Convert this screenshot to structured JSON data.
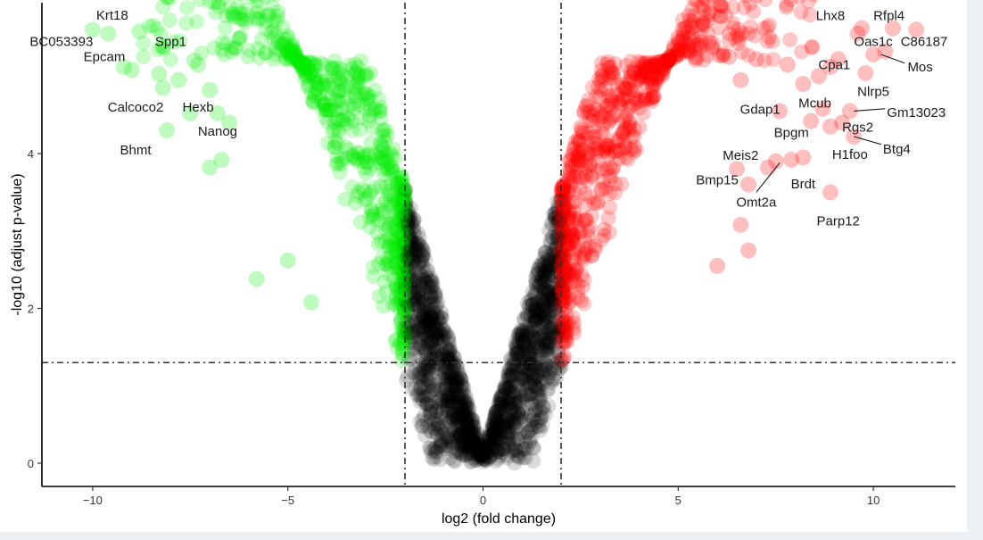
{
  "chart_data": {
    "type": "scatter",
    "title": "",
    "xlabel": "log2 (fold change)",
    "ylabel": "-log10 (adjust p-value)",
    "xlim": [
      -11.3,
      12.1
    ],
    "ylim": [
      -0.3,
      5.95
    ],
    "x_ticks": [
      -10,
      -5,
      0,
      5,
      10
    ],
    "x_tick_labels": [
      "−10",
      "−5",
      "0",
      "5",
      "10"
    ],
    "y_ticks": [
      0,
      2,
      4
    ],
    "y_tick_labels": [
      "0",
      "2",
      "4"
    ],
    "grid": false,
    "legend": "none",
    "thresholds": {
      "log2fc": [
        -2,
        2
      ],
      "neg_log10_padj": 1.3
    },
    "colors": {
      "down": "#00ee00",
      "up": "#ff0000",
      "not_significant": "#000000",
      "threshold_line": "#333333"
    },
    "series": [
      {
        "name": "",
        "color": "#00ee00",
        "points": [
          {
            "x": -10.0,
            "y": 5.6
          },
          {
            "x": -9.6,
            "y": 5.55
          },
          {
            "x": -8.8,
            "y": 5.58
          },
          {
            "x": -9.2,
            "y": 5.12
          },
          {
            "x": -9.0,
            "y": 5.08
          },
          {
            "x": -8.3,
            "y": 5.03
          },
          {
            "x": -7.4,
            "y": 5.2
          },
          {
            "x": -7.3,
            "y": 5.15
          },
          {
            "x": -7.8,
            "y": 4.95
          },
          {
            "x": -8.2,
            "y": 4.85
          },
          {
            "x": -7.0,
            "y": 4.82
          },
          {
            "x": -7.5,
            "y": 4.52
          },
          {
            "x": -6.8,
            "y": 4.52
          },
          {
            "x": -8.1,
            "y": 4.3
          },
          {
            "x": -6.5,
            "y": 4.4
          },
          {
            "x": -7.0,
            "y": 3.82
          },
          {
            "x": -6.7,
            "y": 3.92
          },
          {
            "x": -5.8,
            "y": 2.38
          },
          {
            "x": -4.4,
            "y": 2.08
          },
          {
            "x": -5.0,
            "y": 2.62
          }
        ]
      },
      {
        "name": "",
        "color": "#ff0000",
        "points": [
          {
            "x": 9.7,
            "y": 5.62
          },
          {
            "x": 10.5,
            "y": 5.62
          },
          {
            "x": 11.1,
            "y": 5.6
          },
          {
            "x": 9.6,
            "y": 5.55
          },
          {
            "x": 10.3,
            "y": 5.32
          },
          {
            "x": 10.0,
            "y": 5.28
          },
          {
            "x": 9.1,
            "y": 5.22
          },
          {
            "x": 8.9,
            "y": 5.12
          },
          {
            "x": 9.8,
            "y": 5.04
          },
          {
            "x": 8.6,
            "y": 5.0
          },
          {
            "x": 7.8,
            "y": 5.15
          },
          {
            "x": 8.2,
            "y": 4.9
          },
          {
            "x": 7.6,
            "y": 4.55
          },
          {
            "x": 8.7,
            "y": 4.58
          },
          {
            "x": 8.9,
            "y": 4.35
          },
          {
            "x": 9.4,
            "y": 4.55
          },
          {
            "x": 9.2,
            "y": 4.4
          },
          {
            "x": 9.5,
            "y": 4.22
          },
          {
            "x": 8.4,
            "y": 4.42
          },
          {
            "x": 7.5,
            "y": 3.9
          },
          {
            "x": 7.9,
            "y": 3.92
          },
          {
            "x": 8.2,
            "y": 3.95
          },
          {
            "x": 7.3,
            "y": 3.82
          },
          {
            "x": 6.5,
            "y": 3.8
          },
          {
            "x": 6.8,
            "y": 3.6
          },
          {
            "x": 8.9,
            "y": 3.5
          },
          {
            "x": 6.6,
            "y": 3.08
          },
          {
            "x": 6.8,
            "y": 2.75
          },
          {
            "x": 6.0,
            "y": 2.55
          },
          {
            "x": 7.0,
            "y": 5.22
          },
          {
            "x": 6.3,
            "y": 5.25
          },
          {
            "x": 6.6,
            "y": 4.95
          }
        ]
      }
    ],
    "annotations": [
      {
        "text": "Krt18",
        "x": -9.6,
        "y": 5.58,
        "tx": -9.5,
        "ty": 5.79,
        "anchor": "middle",
        "leader": false
      },
      {
        "text": "BC053393",
        "x": -10.0,
        "y": 5.6,
        "tx": -10.8,
        "ty": 5.45,
        "anchor": "middle",
        "leader": false
      },
      {
        "text": "Spp1",
        "x": -8.8,
        "y": 5.58,
        "tx": -8.0,
        "ty": 5.45,
        "anchor": "middle",
        "leader": false
      },
      {
        "text": "Epcam",
        "x": -9.2,
        "y": 5.12,
        "tx": -9.7,
        "ty": 5.25,
        "anchor": "middle",
        "leader": false
      },
      {
        "text": "Calcoco2",
        "x": -7.8,
        "y": 4.85,
        "tx": -8.9,
        "ty": 4.6,
        "anchor": "middle",
        "leader": false
      },
      {
        "text": "Hexb",
        "x": -7.0,
        "y": 4.72,
        "tx": -7.3,
        "ty": 4.6,
        "anchor": "middle",
        "leader": false
      },
      {
        "text": "Nanog",
        "x": -6.8,
        "y": 4.52,
        "tx": -6.8,
        "ty": 4.29,
        "anchor": "middle",
        "leader": false
      },
      {
        "text": "Bhmt",
        "x": -8.1,
        "y": 4.3,
        "tx": -8.9,
        "ty": 4.05,
        "anchor": "middle",
        "leader": false
      },
      {
        "text": "Lhx8",
        "x": 9.7,
        "y": 5.62,
        "tx": 8.9,
        "ty": 5.78,
        "anchor": "middle",
        "leader": false
      },
      {
        "text": "Rfpl4",
        "x": 10.5,
        "y": 5.62,
        "tx": 10.4,
        "ty": 5.78,
        "anchor": "middle",
        "leader": false
      },
      {
        "text": "Oas1c",
        "x": 10.3,
        "y": 5.32,
        "tx": 10.0,
        "ty": 5.45,
        "anchor": "middle",
        "leader": false
      },
      {
        "text": "C86187",
        "x": 11.1,
        "y": 5.6,
        "tx": 11.3,
        "ty": 5.45,
        "anchor": "middle",
        "leader": false
      },
      {
        "text": "Cpa1",
        "x": 9.1,
        "y": 5.22,
        "tx": 9.0,
        "ty": 5.15,
        "anchor": "middle",
        "leader": false
      },
      {
        "text": "Mos",
        "x": 10.2,
        "y": 5.28,
        "tx": 11.2,
        "ty": 5.12,
        "anchor": "middle",
        "leader": true,
        "lx1": 10.2,
        "ly1": 5.28,
        "lx2": 10.8,
        "ly2": 5.17
      },
      {
        "text": "Nlrp5",
        "x": 9.8,
        "y": 5.04,
        "tx": 10.0,
        "ty": 4.8,
        "anchor": "middle",
        "leader": false
      },
      {
        "text": "Gdap1",
        "x": 7.6,
        "y": 4.55,
        "tx": 7.1,
        "ty": 4.57,
        "anchor": "middle",
        "leader": false
      },
      {
        "text": "Mcub",
        "x": 8.7,
        "y": 4.58,
        "tx": 8.5,
        "ty": 4.65,
        "anchor": "middle",
        "leader": false
      },
      {
        "text": "Gm13023",
        "x": 9.4,
        "y": 4.55,
        "tx": 11.1,
        "ty": 4.53,
        "anchor": "middle",
        "leader": true,
        "lx1": 9.5,
        "ly1": 4.55,
        "lx2": 10.3,
        "ly2": 4.58
      },
      {
        "text": "Bpgm",
        "x": 8.4,
        "y": 4.42,
        "tx": 7.9,
        "ty": 4.27,
        "anchor": "middle",
        "leader": false
      },
      {
        "text": "Rgs2",
        "x": 9.2,
        "y": 4.4,
        "tx": 9.6,
        "ty": 4.34,
        "anchor": "middle",
        "leader": false
      },
      {
        "text": "Btg4",
        "x": 9.5,
        "y": 4.22,
        "tx": 10.6,
        "ty": 4.06,
        "anchor": "middle",
        "leader": true,
        "lx1": 9.5,
        "ly1": 4.22,
        "lx2": 10.2,
        "ly2": 4.12
      },
      {
        "text": "H1foo",
        "x": 8.9,
        "y": 4.1,
        "tx": 9.4,
        "ty": 3.99,
        "anchor": "middle",
        "leader": false
      },
      {
        "text": "Meis2",
        "x": 7.3,
        "y": 3.82,
        "tx": 6.6,
        "ty": 3.98,
        "anchor": "middle",
        "leader": false
      },
      {
        "text": "Bmp15",
        "x": 6.8,
        "y": 3.6,
        "tx": 6.0,
        "ty": 3.66,
        "anchor": "middle",
        "leader": false
      },
      {
        "text": "Brdt",
        "x": 8.2,
        "y": 3.92,
        "tx": 8.2,
        "ty": 3.61,
        "anchor": "middle",
        "leader": false
      },
      {
        "text": "Omt2a",
        "x": 7.6,
        "y": 3.88,
        "tx": 7.0,
        "ty": 3.37,
        "anchor": "middle",
        "leader": true,
        "lx1": 7.6,
        "ly1": 3.88,
        "lx2": 7.0,
        "ly2": 3.5
      },
      {
        "text": "Parp12",
        "x": 8.9,
        "y": 3.5,
        "tx": 9.1,
        "ty": 3.13,
        "anchor": "middle",
        "leader": false
      }
    ]
  }
}
